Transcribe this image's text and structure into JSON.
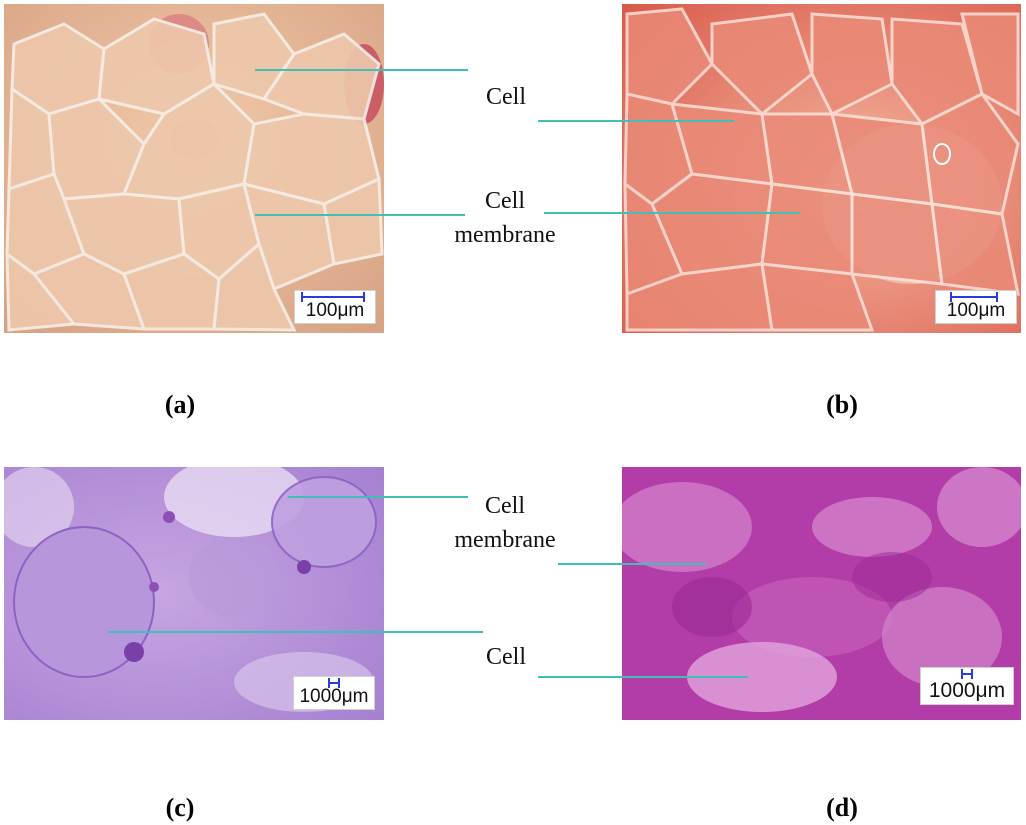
{
  "panels": {
    "a": {
      "caption": "(a)",
      "scale": "100μm"
    },
    "b": {
      "caption": "(b)",
      "scale": "100μm"
    },
    "c": {
      "caption": "(c)",
      "scale": "1000μm"
    },
    "d": {
      "caption": "(d)",
      "scale": "1000μm"
    }
  },
  "labels": {
    "top_cell": "Cell",
    "top_membrane_1": "Cell",
    "top_membrane_2": "membrane",
    "bottom_membrane_1": "Cell",
    "bottom_membrane_2": "membrane",
    "bottom_cell": "Cell"
  },
  "colors": {
    "leader_line": "#3fbfb6",
    "scale_bar": "#2a3cd6"
  }
}
